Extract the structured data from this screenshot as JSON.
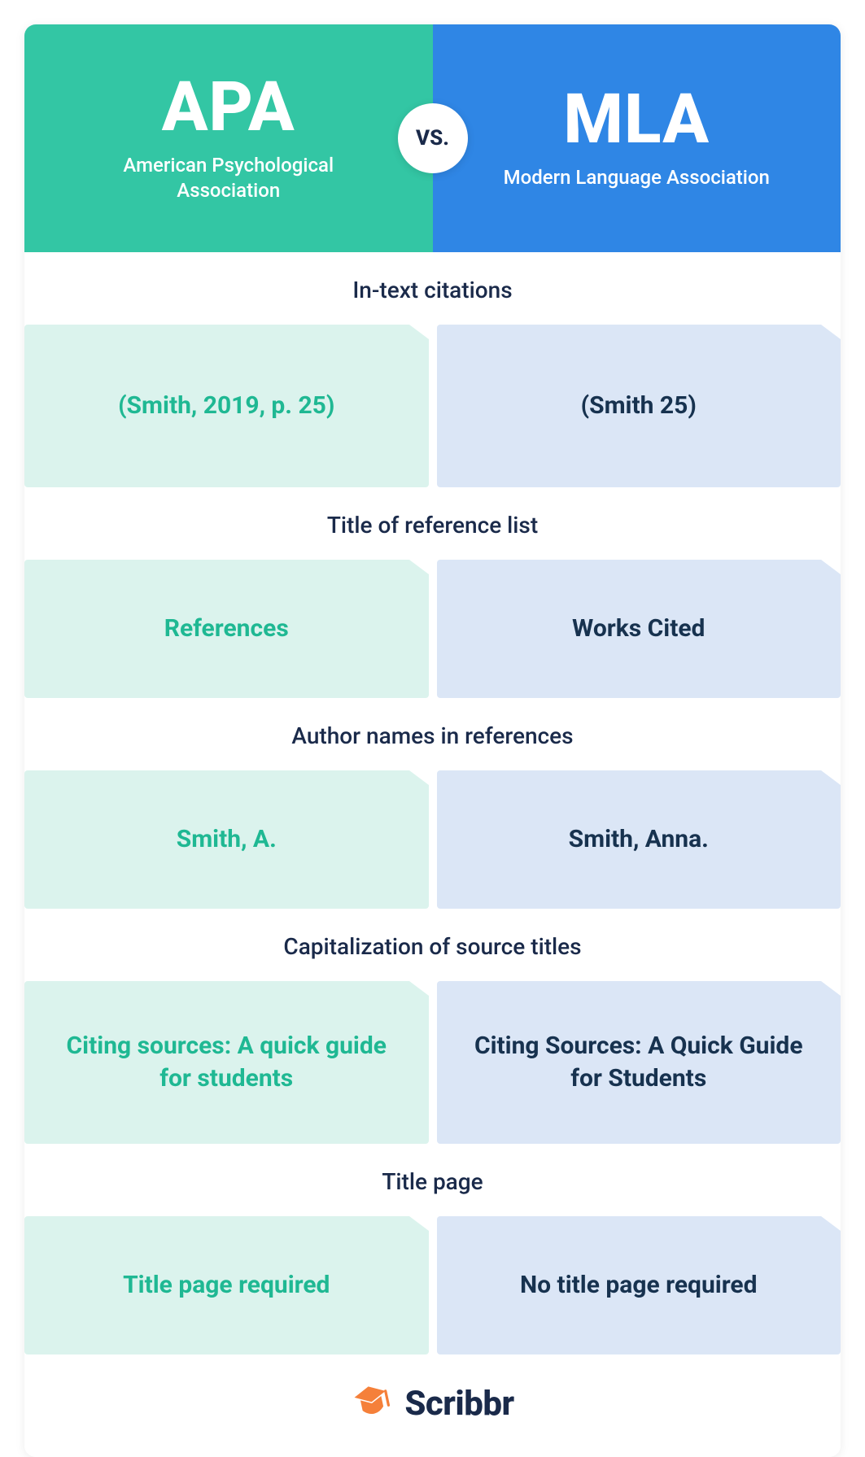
{
  "colors": {
    "apa_header": "#33c6a4",
    "mla_header": "#2f86e5",
    "apa_cell": "#dbf3ed",
    "mla_cell": "#dbe6f6",
    "apa_text": "#1fb893",
    "mla_text": "#17324f",
    "section_text": "#1a2a4a",
    "brand_orange": "#f5803a"
  },
  "header": {
    "left": {
      "abbr": "APA",
      "full": "American Psychological Association"
    },
    "right": {
      "abbr": "MLA",
      "full": "Modern Language Association"
    },
    "vs": "VS."
  },
  "sections": [
    {
      "title": "In-text citations",
      "apa": "(Smith, 2019, p. 25)",
      "mla": "(Smith 25)",
      "tall": true
    },
    {
      "title": "Title of reference list",
      "apa": "References",
      "mla": "Works Cited"
    },
    {
      "title": "Author names in references",
      "apa": "Smith, A.",
      "mla": "Smith, Anna."
    },
    {
      "title": "Capitalization of source titles",
      "apa": "Citing sources: A quick guide for students",
      "mla": "Citing Sources: A Quick Guide for Students",
      "tall": true
    },
    {
      "title": "Title page",
      "apa": "Title page required",
      "mla": "No title page required"
    }
  ],
  "footer": {
    "brand": "Scribbr"
  }
}
